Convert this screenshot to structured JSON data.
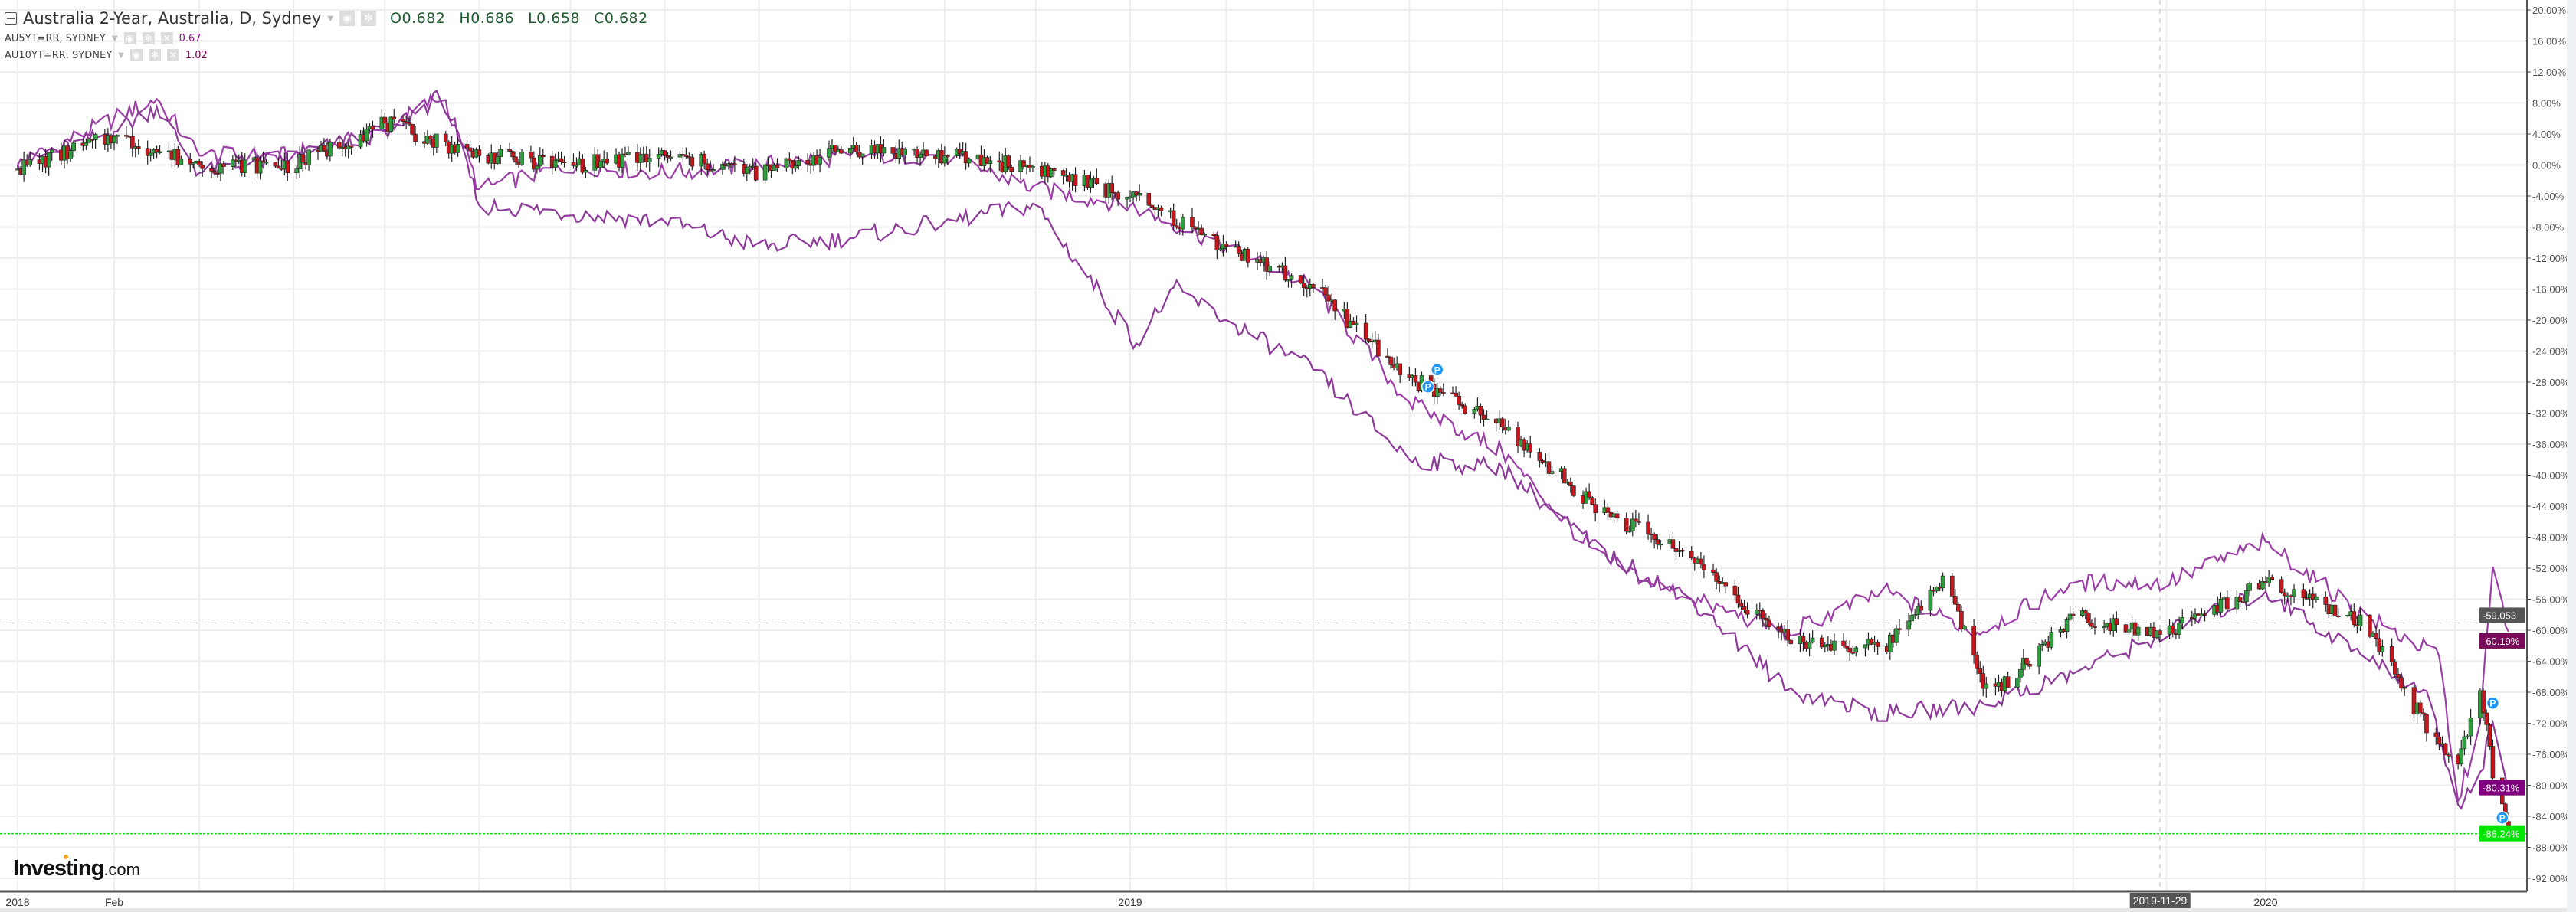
{
  "legend": {
    "main": {
      "title": "Australia 2-Year, Australia, D, Sydney",
      "open": "O0.682",
      "high": "H0.686",
      "low": "L0.658",
      "close": "C0.682"
    },
    "series5": {
      "title": "AU5YT=RR, SYDNEY",
      "value": "0.67"
    },
    "series10": {
      "title": "AU10YT=RR, SYDNEY",
      "value": "1.02"
    },
    "icons": [
      "eye-icon",
      "gear-icon",
      "close-icon"
    ]
  },
  "logo": {
    "brand": "Investing",
    "suffix": ".com"
  },
  "colors": {
    "up": "#2e9e3c",
    "down": "#c4161c",
    "line5": "#9b3fa6",
    "line10": "#8e3a9a",
    "last2y": "#00e600",
    "label5": "#7a0a5a",
    "label10": "#800080",
    "crosshair": "#555555",
    "marker": "#2196f3"
  },
  "chart_data": {
    "type": "candlestick+line",
    "yaxis": {
      "ticks": [
        "20.00%",
        "16.00%",
        "12.00%",
        "8.00%",
        "4.00%",
        "0.00%",
        "-4.00%",
        "-8.00%",
        "-12.00%",
        "-16.00%",
        "-20.00%",
        "-24.00%",
        "-28.00%",
        "-32.00%",
        "-36.00%",
        "-40.00%",
        "-44.00%",
        "-48.00%",
        "-52.00%",
        "-56.00%",
        "-60.00%",
        "-64.00%",
        "-68.00%",
        "-72.00%",
        "-76.00%",
        "-80.00%",
        "-84.00%",
        "-88.00%",
        "-92.00%"
      ],
      "range": [
        -92,
        20
      ],
      "unit": "%",
      "scale": "percent change",
      "position": "right"
    },
    "xaxis": {
      "labels": [
        "2018",
        "Feb",
        "2019",
        "2020"
      ],
      "crosshair_label": "2019-11-29",
      "range": [
        "2018-01-01",
        "2020-03-18"
      ]
    },
    "grid": true,
    "price_labels": {
      "crosshair": "-59.053",
      "series5": "-60.19%",
      "series10": "-80.31%",
      "main": "-86.24%"
    },
    "crosshair": {
      "date": "2019-11-29",
      "value": -59.053
    },
    "series": [
      {
        "name": "Australia 2-Year",
        "style": "candlestick",
        "points": [
          [
            "2018-01-01",
            -0.5
          ],
          [
            "2018-02-01",
            3.7
          ],
          [
            "2018-03-01",
            0
          ],
          [
            "2018-04-01",
            0
          ],
          [
            "2018-05-01",
            5.4
          ],
          [
            "2018-06-01",
            1.2
          ],
          [
            "2018-07-01",
            0
          ],
          [
            "2018-08-01",
            1.2
          ],
          [
            "2018-09-01",
            -1
          ],
          [
            "2018-10-01",
            2.2
          ],
          [
            "2018-11-01",
            1.2
          ],
          [
            "2018-12-01",
            -0.3
          ],
          [
            "2019-01-01",
            -4.1
          ],
          [
            "2019-02-01",
            -10.5
          ],
          [
            "2019-03-01",
            -15.8
          ],
          [
            "2019-04-01",
            -27.4
          ],
          [
            "2019-05-01",
            -33.8
          ],
          [
            "2019-06-01",
            -44.3
          ],
          [
            "2019-07-01",
            -50.7
          ],
          [
            "2019-08-01",
            -61.3
          ],
          [
            "2019-09-01",
            -62.4
          ],
          [
            "2019-09-20",
            -53
          ],
          [
            "2019-10-05",
            -68.7
          ],
          [
            "2019-11-01",
            -58.1
          ],
          [
            "2019-12-01",
            -60.3
          ],
          [
            "2020-01-01",
            -53.9
          ],
          [
            "2020-02-01",
            -59.2
          ],
          [
            "2020-03-01",
            -78.3
          ],
          [
            "2020-03-09",
            -67.8
          ],
          [
            "2020-03-14",
            -80.6
          ],
          [
            "2020-03-18",
            -86.24
          ]
        ]
      },
      {
        "name": "AU5YT=RR, SYDNEY",
        "style": "line",
        "points": [
          [
            "2018-01-01",
            0
          ],
          [
            "2018-02-01",
            6
          ],
          [
            "2018-02-15",
            8.5
          ],
          [
            "2018-03-01",
            1.2
          ],
          [
            "2018-04-01",
            1.2
          ],
          [
            "2018-05-01",
            4.3
          ],
          [
            "2018-05-20",
            9.2
          ],
          [
            "2018-06-01",
            -3.1
          ],
          [
            "2018-07-01",
            0
          ],
          [
            "2018-08-01",
            -1
          ],
          [
            "2018-09-01",
            0
          ],
          [
            "2018-10-01",
            1.2
          ],
          [
            "2018-11-01",
            1.2
          ],
          [
            "2018-12-01",
            -3.1
          ],
          [
            "2019-01-01",
            -5.2
          ],
          [
            "2019-02-01",
            -10.5
          ],
          [
            "2019-03-01",
            -15.8
          ],
          [
            "2019-04-01",
            -30.6
          ],
          [
            "2019-05-01",
            -37
          ],
          [
            "2019-06-01",
            -50.7
          ],
          [
            "2019-07-01",
            -56
          ],
          [
            "2019-08-01",
            -60.3
          ],
          [
            "2019-09-01",
            -55
          ],
          [
            "2019-10-01",
            -60.3
          ],
          [
            "2019-11-01",
            -53.9
          ],
          [
            "2019-12-01",
            -53.9
          ],
          [
            "2020-01-01",
            -48.6
          ],
          [
            "2020-02-01",
            -58.1
          ],
          [
            "2020-02-25",
            -63.4
          ],
          [
            "2020-03-02",
            -82
          ],
          [
            "2020-03-09",
            -71.9
          ],
          [
            "2020-03-13",
            -51.8
          ],
          [
            "2020-03-18",
            -60.19
          ]
        ]
      },
      {
        "name": "AU10YT=RR, SYDNEY",
        "style": "line",
        "points": [
          [
            "2018-01-01",
            0
          ],
          [
            "2018-02-01",
            4.3
          ],
          [
            "2018-02-15",
            7.5
          ],
          [
            "2018-03-01",
            -1
          ],
          [
            "2018-04-01",
            1.2
          ],
          [
            "2018-05-01",
            4.3
          ],
          [
            "2018-05-20",
            9
          ],
          [
            "2018-06-01",
            -5.2
          ],
          [
            "2018-07-01",
            -6.2
          ],
          [
            "2018-08-01",
            -7.3
          ],
          [
            "2018-09-01",
            -10.5
          ],
          [
            "2018-10-01",
            -9.4
          ],
          [
            "2018-11-01",
            -7.3
          ],
          [
            "2018-12-01",
            -5.2
          ],
          [
            "2019-01-03",
            -23
          ],
          [
            "2019-01-15",
            -15.8
          ],
          [
            "2019-02-01",
            -20
          ],
          [
            "2019-03-01",
            -26.4
          ],
          [
            "2019-04-01",
            -38
          ],
          [
            "2019-05-01",
            -39.1
          ],
          [
            "2019-06-01",
            -49.7
          ],
          [
            "2019-07-01",
            -56
          ],
          [
            "2019-08-01",
            -67.7
          ],
          [
            "2019-09-01",
            -70.8
          ],
          [
            "2019-10-01",
            -69.8
          ],
          [
            "2019-11-01",
            -65.6
          ],
          [
            "2019-12-01",
            -60.3
          ],
          [
            "2020-01-01",
            -55
          ],
          [
            "2020-02-01",
            -63.4
          ],
          [
            "2020-02-20",
            -67.7
          ],
          [
            "2020-02-26",
            -75
          ],
          [
            "2020-03-02",
            -82.5
          ],
          [
            "2020-03-09",
            -78.3
          ],
          [
            "2020-03-13",
            -71.9
          ],
          [
            "2020-03-18",
            -80.31
          ]
        ]
      }
    ],
    "markers": [
      {
        "date": "2019-04-10",
        "value": -26.4,
        "label": "P"
      },
      {
        "date": "2019-04-07",
        "value": -28.6,
        "label": "P"
      },
      {
        "date": "2020-03-13",
        "value": -69.4,
        "label": "P"
      },
      {
        "date": "2020-03-16",
        "value": -84.2,
        "label": "P"
      }
    ]
  }
}
